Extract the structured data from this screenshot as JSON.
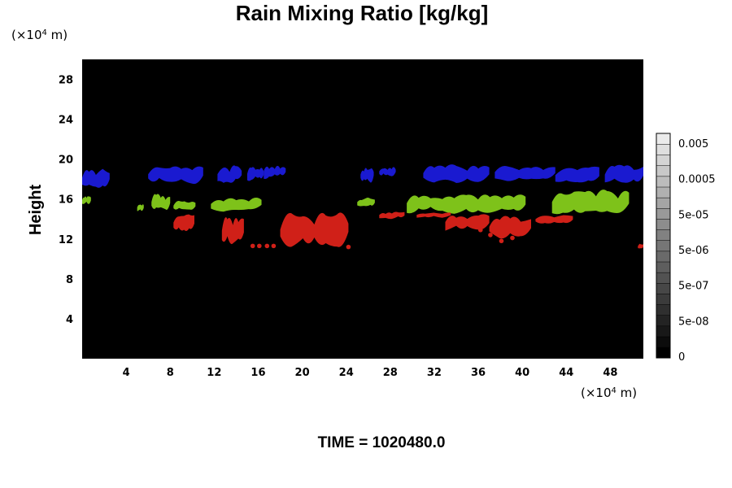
{
  "chart_data": {
    "type": "heatmap",
    "title": "Rain Mixing Ratio [kg/kg]",
    "ylabel": "Height",
    "x_unit": "(×10",
    "x_unit_exp": "4",
    "x_unit_tail": " m)",
    "y_unit": "(×10",
    "y_unit_exp": "4",
    "y_unit_tail": " m)",
    "xlim": [
      0,
      51
    ],
    "ylim": [
      0,
      30
    ],
    "xticks": [
      4,
      8,
      12,
      16,
      20,
      24,
      28,
      32,
      36,
      40,
      44,
      48
    ],
    "yticks": [
      4,
      8,
      12,
      16,
      20,
      24,
      28
    ],
    "background_color": "#000000",
    "colorbar": {
      "labels": [
        "0",
        "5e-08",
        "5e-07",
        "5e-06",
        "5e-05",
        "0.0005",
        "0.005"
      ],
      "levels": 21,
      "color_low": "#000000",
      "color_high": "#ffffff"
    },
    "regions": [
      {
        "name": "blue",
        "color": "#1a1ad0",
        "blobs": [
          [
            0,
            17.0,
            2.5,
            19.5
          ],
          [
            6.0,
            17.4,
            11.0,
            19.8
          ],
          [
            12.3,
            17.6,
            14.5,
            19.6
          ],
          [
            15.0,
            17.8,
            16.5,
            19.4
          ],
          [
            16.5,
            18.0,
            18.5,
            19.8
          ],
          [
            25.3,
            17.6,
            26.5,
            19.5
          ],
          [
            27.0,
            18.2,
            28.5,
            19.5
          ],
          [
            31.0,
            17.6,
            37.0,
            19.8
          ],
          [
            37.5,
            17.8,
            43.0,
            19.8
          ],
          [
            43.0,
            17.5,
            47.0,
            19.5
          ],
          [
            47.5,
            17.5,
            51.0,
            19.6
          ]
        ]
      },
      {
        "name": "green",
        "color": "#7ec21a",
        "blobs": [
          [
            0,
            15.5,
            0.8,
            16.4
          ],
          [
            5.0,
            14.8,
            5.6,
            15.6
          ],
          [
            6.3,
            14.8,
            8.0,
            16.8
          ],
          [
            8.3,
            14.8,
            10.3,
            16.0
          ],
          [
            11.7,
            14.7,
            16.3,
            16.5
          ],
          [
            25.0,
            15.2,
            26.6,
            16.3
          ],
          [
            29.5,
            14.5,
            40.3,
            16.9
          ],
          [
            42.7,
            14.4,
            49.7,
            17.3
          ]
        ]
      },
      {
        "name": "red",
        "color": "#d02018",
        "blobs": [
          [
            8.3,
            12.7,
            10.2,
            14.8
          ],
          [
            12.7,
            11.3,
            14.7,
            14.7
          ],
          [
            18.0,
            11.0,
            24.2,
            15.3
          ],
          [
            27.0,
            14.0,
            29.3,
            14.9
          ],
          [
            30.4,
            14.1,
            33.5,
            14.8
          ],
          [
            33.0,
            12.8,
            37.0,
            14.8
          ],
          [
            37.0,
            12.0,
            40.8,
            14.7
          ],
          [
            41.2,
            13.5,
            44.6,
            14.6
          ],
          [
            50.5,
            11.0,
            51.0,
            11.6
          ]
        ]
      },
      {
        "name": "red-dots",
        "color": "#d02018",
        "points": [
          [
            15.5,
            11.3
          ],
          [
            16.1,
            11.3
          ],
          [
            16.8,
            11.3
          ],
          [
            17.4,
            11.3
          ],
          [
            24.2,
            11.2
          ],
          [
            36.2,
            12.9
          ],
          [
            37.1,
            12.4
          ],
          [
            38.1,
            11.8
          ],
          [
            39.1,
            12.1
          ]
        ]
      }
    ]
  },
  "footer": {
    "time_text": "TIME = 1020480.0"
  }
}
